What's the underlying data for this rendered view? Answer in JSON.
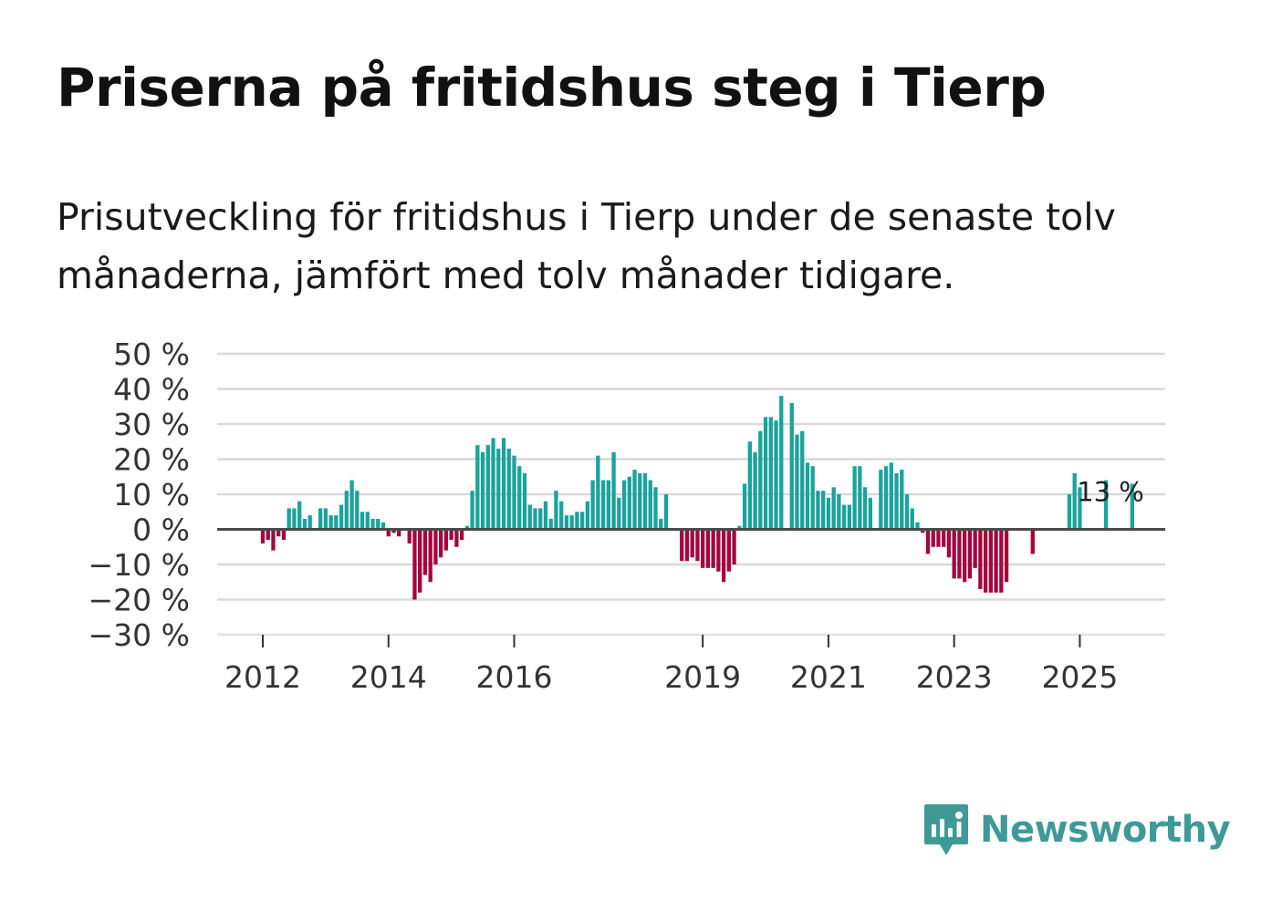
{
  "title": "Priserna på fritidshus steg i Tierp",
  "subtitle": "Prisutveckling för fritidshus i Tierp under de senaste tolv månaderna, jämfört med tolv månader tidigare.",
  "brand": {
    "name": "Newsworthy",
    "icon": "newsworthy-logo-icon"
  },
  "colors": {
    "positive": "#1aa39c",
    "negative": "#a3063f",
    "grid": "#d9d9d9",
    "zero_line": "#4a4a4a",
    "text": "#333333"
  },
  "chart_data": {
    "type": "bar",
    "title": "Priserna på fritidshus steg i Tierp",
    "xlabel": "",
    "ylabel": "",
    "ylim": [
      -30,
      50
    ],
    "y_ticks": [
      50,
      40,
      30,
      20,
      10,
      0,
      -10,
      -20,
      -30
    ],
    "y_tick_labels": [
      "50 %",
      "40 %",
      "30 %",
      "20 %",
      "10 %",
      "0 %",
      "−10 %",
      "−20 %",
      "−30 %"
    ],
    "x_tick_labels": [
      {
        "label": "2012",
        "index": 0
      },
      {
        "label": "2014",
        "index": 24
      },
      {
        "label": "2016",
        "index": 48
      },
      {
        "label": "2019",
        "index": 84
      },
      {
        "label": "2021",
        "index": 108
      },
      {
        "label": "2023",
        "index": 132
      },
      {
        "label": "2025",
        "index": 156
      }
    ],
    "start": "2012-01",
    "unit": "%",
    "series": [
      {
        "name": "Prisutveckling",
        "values": [
          -4,
          -3,
          -6,
          -2,
          -3,
          6,
          6,
          8,
          3,
          4,
          null,
          6,
          6,
          4,
          4,
          7,
          11,
          14,
          11,
          5,
          5,
          3,
          3,
          2,
          -2,
          -1,
          -2,
          null,
          -4,
          -20,
          -18,
          -13,
          -15,
          -10,
          -8,
          -6,
          -3,
          -5,
          -3,
          1,
          11,
          24,
          22,
          24,
          26,
          23,
          26,
          23,
          21,
          18,
          16,
          7,
          6,
          6,
          8,
          3,
          11,
          8,
          4,
          4,
          5,
          5,
          8,
          14,
          21,
          14,
          14,
          22,
          9,
          14,
          15,
          17,
          16,
          16,
          14,
          12,
          3,
          10,
          null,
          null,
          -9,
          -9,
          -8,
          -9,
          -11,
          -11,
          -11,
          -12,
          -15,
          -12,
          -10,
          1,
          13,
          25,
          22,
          28,
          32,
          32,
          31,
          38,
          null,
          36,
          27,
          28,
          19,
          18,
          11,
          11,
          9,
          12,
          10,
          7,
          7,
          18,
          18,
          12,
          9,
          null,
          17,
          18,
          19,
          16,
          17,
          10,
          6,
          2,
          -1,
          -7,
          -5,
          -5,
          -5,
          -8,
          -14,
          -14,
          -15,
          -14,
          -11,
          -17,
          -18,
          -18,
          -18,
          -18,
          -15,
          null,
          null,
          null,
          null,
          -7,
          null,
          null,
          null,
          null,
          null,
          null,
          10,
          16,
          12,
          null,
          null,
          null,
          null,
          14,
          null,
          null,
          null,
          null,
          13
        ],
        "positive_color": "#1aa39c",
        "negative_color": "#a3063f"
      }
    ],
    "annotations": [
      {
        "text": "13 %",
        "index": 162
      }
    ]
  }
}
